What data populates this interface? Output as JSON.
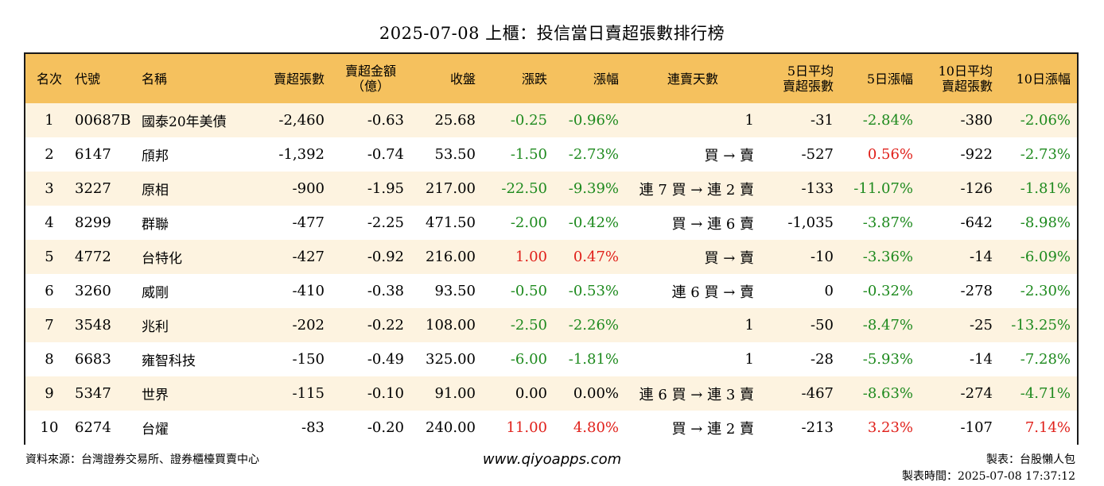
{
  "title": "2025-07-08 上櫃：投信當日賣超張數排行榜",
  "colors": {
    "header_bg": "#f5c15e",
    "row_alt_bg": "#fdf3e0",
    "negative": "#1e8a1e",
    "positive": "#e0201a"
  },
  "headers": {
    "rank": "名次",
    "code": "代號",
    "name": "名稱",
    "sell_shares": "賣超張數",
    "sell_amount_1": "賣超金額",
    "sell_amount_2": "（億）",
    "close": "收盤",
    "change": "漲跌",
    "change_pct": "漲幅",
    "streak": "連賣天數",
    "avg5_1": "5日平均",
    "avg5_2": "賣超張數",
    "chg5": "5日漲幅",
    "avg10_1": "10日平均",
    "avg10_2": "賣超張數",
    "chg10": "10日漲幅"
  },
  "rows": [
    {
      "rank": "1",
      "code": "00687B",
      "name": "國泰20年美債",
      "sell_shares": "-2,460",
      "sell_amount": "-0.63",
      "close": "25.68",
      "change": "-0.25",
      "change_pct": "-0.96%",
      "streak": "1",
      "avg5": "-31",
      "chg5": "-2.84%",
      "avg10": "-380",
      "chg10": "-2.06%"
    },
    {
      "rank": "2",
      "code": "6147",
      "name": "頎邦",
      "sell_shares": "-1,392",
      "sell_amount": "-0.74",
      "close": "53.50",
      "change": "-1.50",
      "change_pct": "-2.73%",
      "streak": "買 → 賣",
      "avg5": "-527",
      "chg5": "0.56%",
      "avg10": "-922",
      "chg10": "-2.73%"
    },
    {
      "rank": "3",
      "code": "3227",
      "name": "原相",
      "sell_shares": "-900",
      "sell_amount": "-1.95",
      "close": "217.00",
      "change": "-22.50",
      "change_pct": "-9.39%",
      "streak": "連 7 買 → 連 2 賣",
      "avg5": "-133",
      "chg5": "-11.07%",
      "avg10": "-126",
      "chg10": "-1.81%"
    },
    {
      "rank": "4",
      "code": "8299",
      "name": "群聯",
      "sell_shares": "-477",
      "sell_amount": "-2.25",
      "close": "471.50",
      "change": "-2.00",
      "change_pct": "-0.42%",
      "streak": "買 → 連 6 賣",
      "avg5": "-1,035",
      "chg5": "-3.87%",
      "avg10": "-642",
      "chg10": "-8.98%"
    },
    {
      "rank": "5",
      "code": "4772",
      "name": "台特化",
      "sell_shares": "-427",
      "sell_amount": "-0.92",
      "close": "216.00",
      "change": "1.00",
      "change_pct": "0.47%",
      "streak": "買 → 賣",
      "avg5": "-10",
      "chg5": "-3.36%",
      "avg10": "-14",
      "chg10": "-6.09%"
    },
    {
      "rank": "6",
      "code": "3260",
      "name": "威剛",
      "sell_shares": "-410",
      "sell_amount": "-0.38",
      "close": "93.50",
      "change": "-0.50",
      "change_pct": "-0.53%",
      "streak": "連 6 買 → 賣",
      "avg5": "0",
      "chg5": "-0.32%",
      "avg10": "-278",
      "chg10": "-2.30%"
    },
    {
      "rank": "7",
      "code": "3548",
      "name": "兆利",
      "sell_shares": "-202",
      "sell_amount": "-0.22",
      "close": "108.00",
      "change": "-2.50",
      "change_pct": "-2.26%",
      "streak": "1",
      "avg5": "-50",
      "chg5": "-8.47%",
      "avg10": "-25",
      "chg10": "-13.25%"
    },
    {
      "rank": "8",
      "code": "6683",
      "name": "雍智科技",
      "sell_shares": "-150",
      "sell_amount": "-0.49",
      "close": "325.00",
      "change": "-6.00",
      "change_pct": "-1.81%",
      "streak": "1",
      "avg5": "-28",
      "chg5": "-5.93%",
      "avg10": "-14",
      "chg10": "-7.28%"
    },
    {
      "rank": "9",
      "code": "5347",
      "name": "世界",
      "sell_shares": "-115",
      "sell_amount": "-0.10",
      "close": "91.00",
      "change": "0.00",
      "change_pct": "0.00%",
      "streak": "連 6 買 → 連 3 賣",
      "avg5": "-467",
      "chg5": "-8.63%",
      "avg10": "-274",
      "chg10": "-4.71%"
    },
    {
      "rank": "10",
      "code": "6274",
      "name": "台燿",
      "sell_shares": "-83",
      "sell_amount": "-0.20",
      "close": "240.00",
      "change": "11.00",
      "change_pct": "4.80%",
      "streak": "買 → 連 2 賣",
      "avg5": "-213",
      "chg5": "3.23%",
      "avg10": "-107",
      "chg10": "7.14%"
    }
  ],
  "footer": {
    "source": "資料來源：台灣證券交易所、證券櫃檯買賣中心",
    "website": "www.qiyoapps.com",
    "author": "製表：台股懶人包",
    "time": "製表時間：2025-07-08 17:37:12"
  }
}
